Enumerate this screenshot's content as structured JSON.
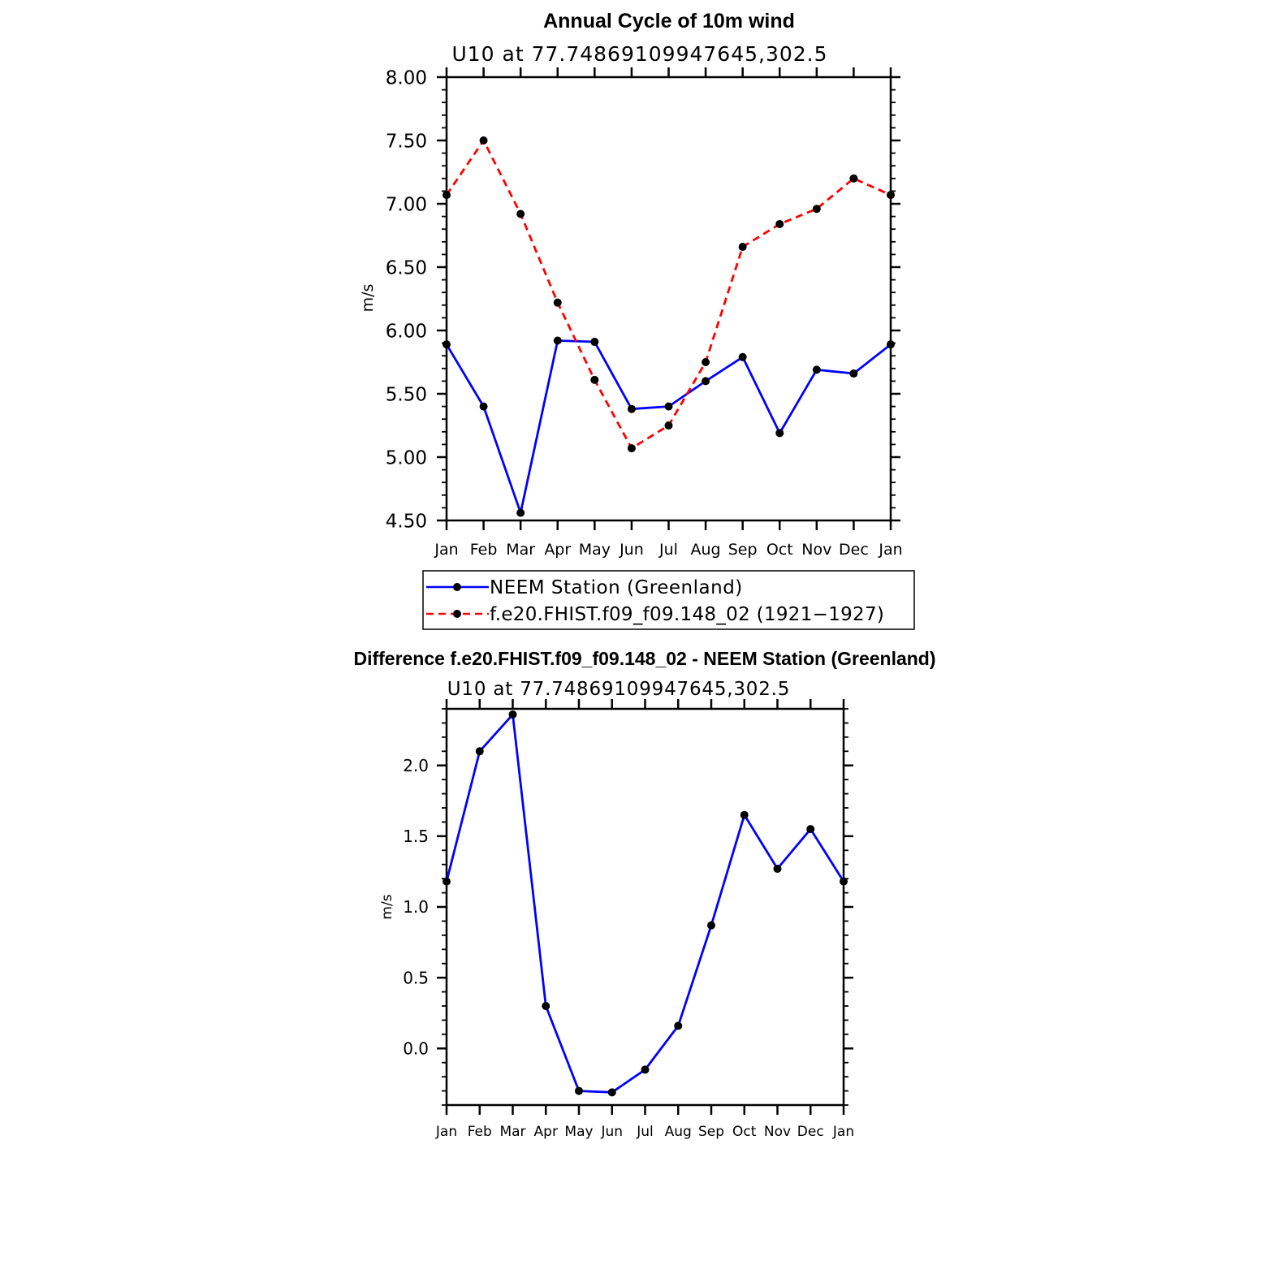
{
  "chart_data": [
    {
      "type": "line",
      "title": "Annual Cycle of 10m wind",
      "subtitle": "U10 at 77.74869109947645,302.5",
      "ylabel": "m/s",
      "xlabel": "",
      "ylim": [
        4.5,
        8.0
      ],
      "yticks": [
        "4.50",
        "5.00",
        "5.50",
        "6.00",
        "6.50",
        "7.00",
        "7.50",
        "8.00"
      ],
      "categories": [
        "Jan",
        "Feb",
        "Mar",
        "Apr",
        "May",
        "Jun",
        "Jul",
        "Aug",
        "Sep",
        "Oct",
        "Nov",
        "Dec",
        "Jan"
      ],
      "series": [
        {
          "name": "NEEM Station (Greenland)",
          "color": "#0000ff",
          "dash": "solid",
          "values": [
            5.89,
            5.4,
            4.56,
            5.92,
            5.91,
            5.38,
            5.4,
            5.6,
            5.79,
            5.19,
            5.69,
            5.66,
            5.89
          ]
        },
        {
          "name": "f.e20.FHIST.f09_f09.148_02 (1921−1927)",
          "color": "#ff0000",
          "dash": "dashed",
          "values": [
            7.07,
            7.5,
            6.92,
            6.22,
            5.61,
            5.07,
            5.25,
            5.75,
            6.66,
            6.84,
            6.96,
            7.2,
            7.07
          ]
        }
      ],
      "legend": "below"
    },
    {
      "type": "line",
      "title": "Difference f.e20.FHIST.f09_f09.148_02 - NEEM Station (Greenland)",
      "subtitle": "U10 at 77.74869109947645,302.5",
      "ylabel": "m/s",
      "xlabel": "",
      "ylim": [
        -0.4,
        2.4
      ],
      "yticks": [
        "0.0",
        "0.5",
        "1.0",
        "1.5",
        "2.0"
      ],
      "ytick_values": [
        0.0,
        0.5,
        1.0,
        1.5,
        2.0
      ],
      "categories": [
        "Jan",
        "Feb",
        "Mar",
        "Apr",
        "May",
        "Jun",
        "Jul",
        "Aug",
        "Sep",
        "Oct",
        "Nov",
        "Dec",
        "Jan"
      ],
      "series": [
        {
          "name": "Difference",
          "color": "#0000ff",
          "dash": "solid",
          "values": [
            1.18,
            2.1,
            2.36,
            0.3,
            -0.3,
            -0.31,
            -0.15,
            0.16,
            0.87,
            1.65,
            1.27,
            1.55,
            1.18
          ]
        }
      ]
    }
  ]
}
